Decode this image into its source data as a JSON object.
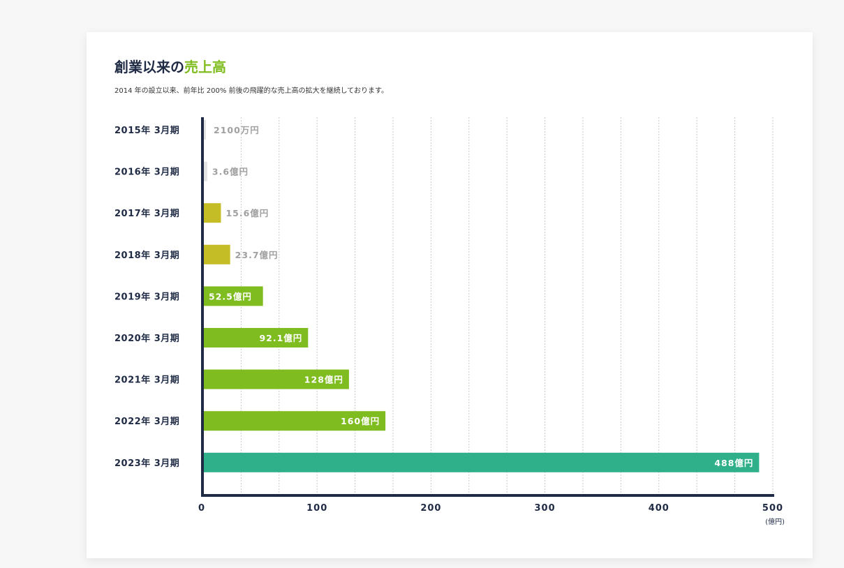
{
  "heading": {
    "title_prefix": "創業以来の",
    "title_accent": "売上高",
    "subtitle": "2014 年の設立以来、前年比 200% 前後の飛躍的な売上高の拡大を継続しております。"
  },
  "colors": {
    "axis": "#1f2a44",
    "grid": "#c9c9c9",
    "label_outside": "#a0a0a0",
    "label_inside": "#ffffff"
  },
  "chart_data": {
    "type": "bar",
    "orientation": "horizontal",
    "categories": [
      "2015年 3月期",
      "2016年 3月期",
      "2017年 3月期",
      "2018年 3月期",
      "2019年 3月期",
      "2020年 3月期",
      "2021年 3月期",
      "2022年 3月期",
      "2023年 3月期"
    ],
    "values": [
      0.21,
      3.6,
      15.6,
      23.7,
      52.5,
      92.1,
      128,
      160,
      488
    ],
    "value_labels": [
      "2100万円",
      "3.6億円",
      "15.6億円",
      "23.7億円",
      "52.5億円",
      "92.1億円",
      "128億円",
      "160億円",
      "488億円"
    ],
    "bar_colors": [
      "#e3e3e3",
      "#e3e3e3",
      "#c5bd25",
      "#c5bd25",
      "#7fbc1f",
      "#7fbc1f",
      "#7fbc1f",
      "#7fbc1f",
      "#2fb08a"
    ],
    "label_inside": [
      false,
      false,
      false,
      false,
      true,
      true,
      true,
      true,
      true
    ],
    "x_ticks": [
      "0",
      "100",
      "200",
      "300",
      "400",
      "500"
    ],
    "xlim": [
      0,
      500
    ],
    "x_unit": "(億円)",
    "grid": true
  }
}
